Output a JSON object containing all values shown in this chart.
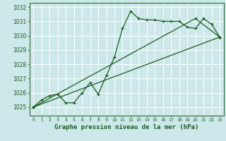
{
  "title": "Graphe pression niveau de la mer (hPa)",
  "bg_color": "#cce8ea",
  "grid_color": "#b0d8db",
  "line_color": "#1a5c1a",
  "xlim": [
    -0.5,
    23.5
  ],
  "ylim": [
    1024.4,
    1032.3
  ],
  "yticks": [
    1025,
    1026,
    1027,
    1028,
    1029,
    1030,
    1031,
    1032
  ],
  "xticks": [
    0,
    1,
    2,
    3,
    4,
    5,
    6,
    7,
    8,
    9,
    10,
    11,
    12,
    13,
    14,
    15,
    16,
    17,
    18,
    19,
    20,
    21,
    22,
    23
  ],
  "series1_x": [
    0,
    1,
    2,
    3,
    4,
    5,
    6,
    7,
    8,
    9,
    10,
    11,
    12,
    13,
    14,
    15,
    16,
    17,
    18,
    19,
    20,
    21,
    22,
    23
  ],
  "series1_y": [
    1025.0,
    1025.5,
    1025.8,
    1025.9,
    1025.3,
    1025.3,
    1026.0,
    1026.7,
    1025.9,
    1027.2,
    1028.5,
    1030.5,
    1031.7,
    1031.2,
    1031.1,
    1031.1,
    1031.0,
    1031.0,
    1031.0,
    1030.6,
    1030.5,
    1031.2,
    1030.8,
    1029.9
  ],
  "series2_x": [
    0,
    23
  ],
  "series2_y": [
    1025.0,
    1029.9
  ],
  "series3_x": [
    0,
    20,
    23
  ],
  "series3_y": [
    1025.0,
    1031.2,
    1029.9
  ]
}
